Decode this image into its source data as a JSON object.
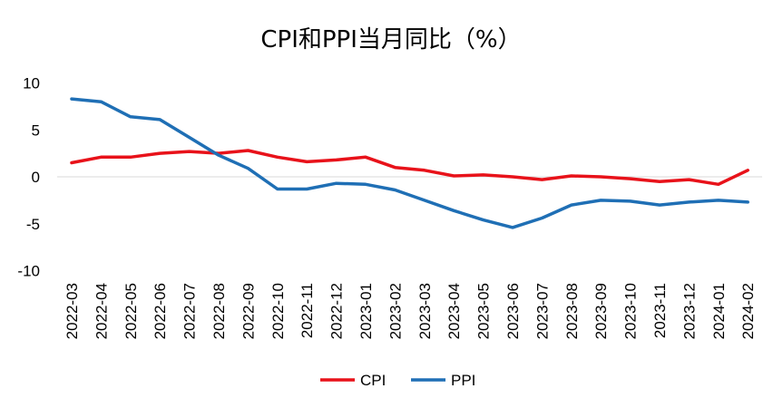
{
  "chart_data": {
    "type": "line",
    "title": "CPI和PPI当月同比（%）",
    "categories": [
      "2022-03",
      "2022-04",
      "2022-05",
      "2022-06",
      "2022-07",
      "2022-08",
      "2022-09",
      "2022-10",
      "2022-11",
      "2022-12",
      "2023-01",
      "2023-02",
      "2023-03",
      "2023-04",
      "2023-05",
      "2023-06",
      "2023-07",
      "2023-08",
      "2023-09",
      "2023-10",
      "2023-11",
      "2023-12",
      "2024-01",
      "2024-02"
    ],
    "series": [
      {
        "name": "CPI",
        "color": "#e8121a",
        "values": [
          1.5,
          2.1,
          2.1,
          2.5,
          2.7,
          2.5,
          2.8,
          2.1,
          1.6,
          1.8,
          2.1,
          1.0,
          0.7,
          0.1,
          0.2,
          0.0,
          -0.3,
          0.1,
          0.0,
          -0.2,
          -0.5,
          -0.3,
          -0.8,
          0.7
        ]
      },
      {
        "name": "PPI",
        "color": "#1f6fb5",
        "values": [
          8.3,
          8.0,
          6.4,
          6.1,
          4.2,
          2.3,
          0.9,
          -1.3,
          -1.3,
          -0.7,
          -0.8,
          -1.4,
          -2.5,
          -3.6,
          -4.6,
          -5.4,
          -4.4,
          -3.0,
          -2.5,
          -2.6,
          -3.0,
          -2.7,
          -2.5,
          -2.7
        ]
      }
    ],
    "yticks": [
      "10",
      "5",
      "0",
      "-5",
      "-10"
    ],
    "ylim": [
      -10,
      10
    ],
    "legend_position": "bottom",
    "grid": false
  }
}
